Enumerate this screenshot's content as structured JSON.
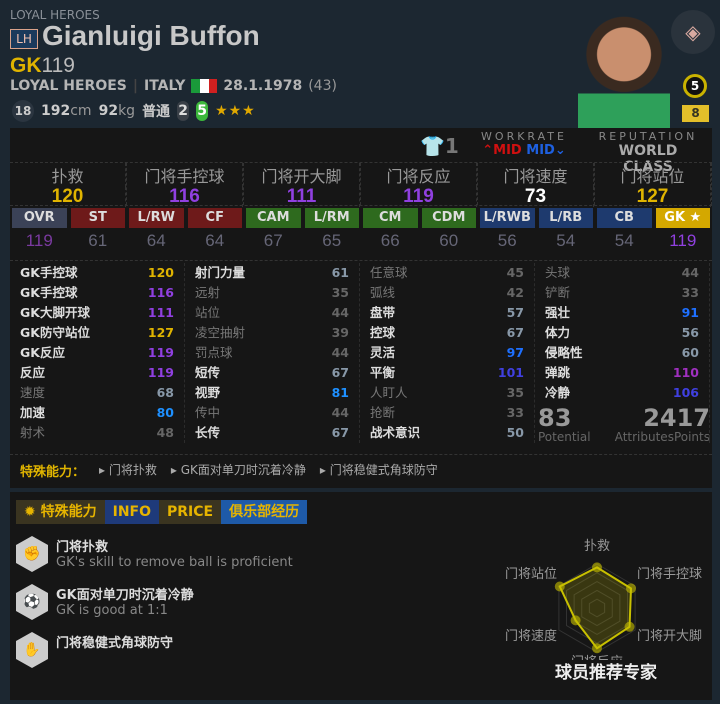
{
  "header": {
    "season": "LOYAL HEROES",
    "season_badge": "LH",
    "name": "Gianluigi Buffon",
    "position": "GK",
    "overall": "119",
    "team": "LOYAL HEROES",
    "nation": "ITALY",
    "birth": "28.1.1978",
    "age": "(43)",
    "physical": {
      "level": "18",
      "height": "192",
      "height_unit": "cm",
      "weight": "92",
      "weight_unit": "kg",
      "body": "普通",
      "weak_foot": "2",
      "skill_moves": "5",
      "stars": "★★★"
    },
    "upgrade": "5",
    "enhance": "8",
    "club_icon": "diamond-crest-icon"
  },
  "panel": {
    "shirt_number": "1",
    "workrate_label": "WORKRATE",
    "workrate_att": "MID",
    "workrate_def": "MID",
    "reputation_label": "REPUTATION",
    "reputation": "WORLD CLASS"
  },
  "gk_stats": [
    {
      "label": "扑救",
      "value": "120",
      "color": "#e0b400"
    },
    {
      "label": "门将手控球",
      "value": "116",
      "color": "#9040e0"
    },
    {
      "label": "门将开大脚",
      "value": "111",
      "color": "#9040e0"
    },
    {
      "label": "门将反应",
      "value": "119",
      "color": "#9040e0"
    },
    {
      "label": "门将速度",
      "value": "73",
      "color": "#ffffff"
    },
    {
      "label": "门将站位",
      "value": "127",
      "color": "#e0b400"
    }
  ],
  "positions": [
    {
      "pos": "OVR",
      "val": "119",
      "bg": "#3b4257"
    },
    {
      "pos": "ST",
      "val": "61",
      "bg": "#6e1a1a"
    },
    {
      "pos": "L/RW",
      "val": "64",
      "bg": "#6e1a1a"
    },
    {
      "pos": "CF",
      "val": "64",
      "bg": "#6e1a1a"
    },
    {
      "pos": "CAM",
      "val": "67",
      "bg": "#2e6a1e"
    },
    {
      "pos": "L/RM",
      "val": "65",
      "bg": "#2e6a1e"
    },
    {
      "pos": "CM",
      "val": "66",
      "bg": "#2e6a1e"
    },
    {
      "pos": "CDM",
      "val": "60",
      "bg": "#2e6a1e"
    },
    {
      "pos": "L/RWB",
      "val": "56",
      "bg": "#1e3a6e"
    },
    {
      "pos": "L/RB",
      "val": "54",
      "bg": "#1e3a6e"
    },
    {
      "pos": "CB",
      "val": "54",
      "bg": "#1e3a6e"
    },
    {
      "pos": "GK ★",
      "val": "119",
      "bg": "#d4a800"
    }
  ],
  "attributes": [
    [
      [
        "GK手控球",
        "120",
        "#e0b400",
        1
      ],
      [
        "GK手控球",
        "116",
        "#9040e0",
        1
      ],
      [
        "GK大脚开球",
        "111",
        "#9040e0",
        1
      ],
      [
        "GK防守站位",
        "127",
        "#e0b400",
        1
      ],
      [
        "GK反应",
        "119",
        "#9040e0",
        1
      ],
      [
        "反应",
        "119",
        "#9040e0",
        1
      ],
      [
        "速度",
        "68",
        "#8898a8",
        0
      ],
      [
        "加速",
        "80",
        "#1e90ff",
        1
      ],
      [
        "射术",
        "48",
        "#666",
        0
      ]
    ],
    [
      [
        "射门力量",
        "61",
        "#8898a8",
        1
      ],
      [
        "远射",
        "35",
        "#666",
        0
      ],
      [
        "站位",
        "44",
        "#666",
        0
      ],
      [
        "凌空抽射",
        "39",
        "#666",
        0
      ],
      [
        "罚点球",
        "44",
        "#666",
        0
      ],
      [
        "短传",
        "67",
        "#8898a8",
        1
      ],
      [
        "视野",
        "81",
        "#1e90ff",
        1
      ],
      [
        "传中",
        "44",
        "#666",
        0
      ],
      [
        "长传",
        "67",
        "#8898a8",
        1
      ]
    ],
    [
      [
        "任意球",
        "45",
        "#666",
        0
      ],
      [
        "弧线",
        "42",
        "#666",
        0
      ],
      [
        "盘带",
        "57",
        "#8898a8",
        1
      ],
      [
        "控球",
        "67",
        "#8898a8",
        1
      ],
      [
        "灵活",
        "97",
        "#1e70ff",
        1
      ],
      [
        "平衡",
        "101",
        "#4040e0",
        1
      ],
      [
        "人盯人",
        "35",
        "#666",
        0
      ],
      [
        "抢断",
        "33",
        "#666",
        0
      ],
      [
        "战术意识",
        "50",
        "#8898a8",
        1
      ]
    ],
    [
      [
        "头球",
        "44",
        "#666",
        0
      ],
      [
        "铲断",
        "33",
        "#666",
        0
      ],
      [
        "强壮",
        "91",
        "#1e70ff",
        1
      ],
      [
        "体力",
        "56",
        "#8898a8",
        1
      ],
      [
        "侵略性",
        "60",
        "#8898a8",
        1
      ],
      [
        "弹跳",
        "110",
        "#a030c0",
        1
      ],
      [
        "冷静",
        "106",
        "#4040e0",
        1
      ]
    ]
  ],
  "potential": {
    "value": "83",
    "label": "Potential"
  },
  "attribute_points": {
    "value": "2417",
    "label": "AttributesPoints"
  },
  "traits_line": {
    "label": "特殊能力：",
    "items": [
      "门将扑救",
      "GK面对单刀时沉着冷静",
      "门将稳健式角球防守"
    ]
  },
  "tabs": [
    {
      "label": "特殊能力",
      "bg": "#3a3420"
    },
    {
      "label": "INFO",
      "bg": "#1e3a7a"
    },
    {
      "label": "PRICE",
      "bg": "#3a3420"
    },
    {
      "label": "俱乐部经历",
      "bg": "#1e5aa8"
    }
  ],
  "skills": [
    {
      "name": "门将扑救",
      "desc": "GK's skill to remove ball is proficient",
      "icon": "punch-icon"
    },
    {
      "name": "GK面对单刀时沉着冷静",
      "desc": "GK is good at 1:1",
      "icon": "goal-dive-icon"
    },
    {
      "name": "门将稳健式角球防守",
      "desc": "",
      "icon": "glove-icon"
    }
  ],
  "chart_data": {
    "type": "radar",
    "categories": [
      "扑救",
      "门将手控球",
      "门将开大脚",
      "门将反应",
      "门将速度",
      "门将站位"
    ],
    "values": [
      120,
      116,
      111,
      119,
      73,
      127
    ],
    "color": "#c8c000"
  },
  "watermark": "球员推荐专家"
}
